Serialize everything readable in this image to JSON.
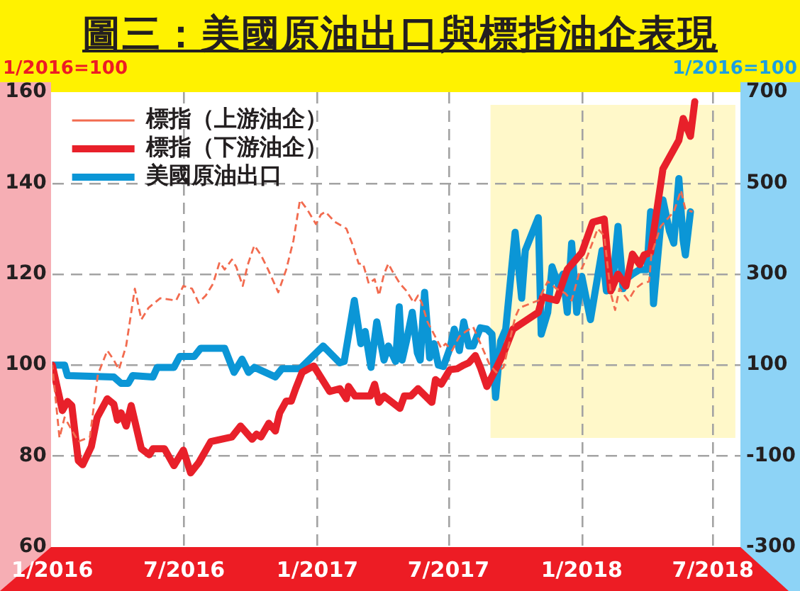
{
  "chart_data": {
    "type": "line",
    "title": "圖三：美國原油出口與標指油企表現",
    "ylabel": "1/2016=100",
    "y2label": "1/2016=100",
    "xlim": [
      "2016-01-01",
      "2018-08-08"
    ],
    "xticks": [
      {
        "value": "2016-01",
        "label": "1/2016"
      },
      {
        "value": "2016-07",
        "label": "7/2016"
      },
      {
        "value": "2017-01",
        "label": "1/2017"
      },
      {
        "value": "2017-07",
        "label": "7/2017"
      },
      {
        "value": "2018-01",
        "label": "1/2018"
      },
      {
        "value": "2018-07",
        "label": "7/2018"
      }
    ],
    "ylim": [
      60,
      160
    ],
    "yticks": [
      60,
      80,
      100,
      120,
      140,
      160
    ],
    "y2lim": [
      -300,
      700
    ],
    "y2ticks": [
      -300,
      -100,
      100,
      300,
      500,
      700
    ],
    "grid": true,
    "legend": "top left",
    "marker": "none",
    "bands": [
      {
        "axis": "x",
        "from": "2017-08-28",
        "to": "2018-08-01",
        "color": "#fff8c9"
      }
    ],
    "series": [
      {
        "name": "標指（上游油企）",
        "color": "#f26b4f",
        "line_style": "dashed",
        "x": [
          "2016-01-01",
          "2016-01-11",
          "2016-01-18",
          "2016-02-06",
          "2016-02-22",
          "2016-03-04",
          "2016-03-17",
          "2016-03-26",
          "2016-04-02",
          "2016-04-12",
          "2016-04-24",
          "2016-05-03",
          "2016-05-13",
          "2016-05-29",
          "2016-06-20",
          "2016-06-30",
          "2016-07-12",
          "2016-07-21",
          "2016-07-31",
          "2016-08-10",
          "2016-08-19",
          "2016-08-26",
          "2016-09-05",
          "2016-09-11",
          "2016-09-20",
          "2016-09-27",
          "2016-10-06",
          "2016-10-15",
          "2016-10-25",
          "2016-11-08",
          "2016-11-19",
          "2016-11-29",
          "2016-12-08",
          "2016-12-18",
          "2016-12-30",
          "2017-01-06",
          "2017-01-12",
          "2017-01-25",
          "2017-02-10",
          "2017-02-19",
          "2017-02-27",
          "2017-03-05",
          "2017-03-13",
          "2017-03-21",
          "2017-03-27",
          "2017-04-03",
          "2017-04-09",
          "2017-04-15",
          "2017-04-25",
          "2017-05-04",
          "2017-05-14",
          "2017-05-20",
          "2017-05-25",
          "2017-06-02",
          "2017-06-11",
          "2017-06-21",
          "2017-06-27",
          "2017-07-06",
          "2017-07-16",
          "2017-07-25",
          "2017-08-04",
          "2017-08-17",
          "2017-08-27",
          "2017-09-05",
          "2017-09-15",
          "2017-10-01",
          "2017-10-07",
          "2017-11-02",
          "2017-11-15",
          "2017-11-27",
          "2017-12-09",
          "2017-12-18",
          "2017-12-28",
          "2018-01-07",
          "2018-01-23",
          "2018-02-01",
          "2018-02-10",
          "2018-02-16",
          "2018-02-22",
          "2018-03-06",
          "2018-03-16",
          "2018-03-25",
          "2018-04-04",
          "2018-04-07",
          "2018-04-20",
          "2018-04-29",
          "2018-05-08",
          "2018-05-18",
          "2018-05-24",
          "2018-06-03"
        ],
        "values": [
          100,
          84,
          88.5,
          83.2,
          84.2,
          97.9,
          103.2,
          101.1,
          99,
          104.2,
          116.8,
          110,
          112.6,
          114.7,
          114.2,
          117.4,
          116.8,
          113.7,
          115.3,
          117.9,
          122.6,
          121,
          123.2,
          121.6,
          117.4,
          122.1,
          126.3,
          124.2,
          121,
          116,
          121,
          127.4,
          136.3,
          134.2,
          131,
          133.1,
          133.7,
          131.5,
          130,
          126.3,
          122.3,
          122.3,
          117.9,
          118.9,
          115.3,
          120,
          122.3,
          120.5,
          117.9,
          116.3,
          113.7,
          115.3,
          113.7,
          109.5,
          106.8,
          103.7,
          104.7,
          103.2,
          106.3,
          107.4,
          108.4,
          103.7,
          100,
          98.4,
          99.5,
          110.5,
          112.6,
          114.2,
          118.4,
          116.8,
          115.8,
          114.2,
          120,
          123.2,
          130,
          128.4,
          115.8,
          112.1,
          116.8,
          114.2,
          116.8,
          117.9,
          118.4,
          124.2,
          130.5,
          132.1,
          133.7,
          138.4,
          134.2,
          133.7
        ]
      },
      {
        "name": "標指（下游油企）",
        "color": "#e8202a",
        "x": [
          "2016-01-01",
          "2016-01-15",
          "2016-01-22",
          "2016-01-28",
          "2016-02-06",
          "2016-02-12",
          "2016-02-24",
          "2016-03-03",
          "2016-03-17",
          "2016-03-26",
          "2016-03-31",
          "2016-04-05",
          "2016-04-12",
          "2016-04-19",
          "2016-05-03",
          "2016-05-14",
          "2016-05-19",
          "2016-06-04",
          "2016-06-17",
          "2016-06-30",
          "2016-07-10",
          "2016-07-21",
          "2016-08-07",
          "2016-09-05",
          "2016-09-17",
          "2016-10-03",
          "2016-10-09",
          "2016-10-15",
          "2016-10-26",
          "2016-11-04",
          "2016-11-10",
          "2016-11-19",
          "2016-11-26",
          "2016-12-02",
          "2016-12-11",
          "2016-12-27",
          "2017-01-18",
          "2017-02-01",
          "2017-02-10",
          "2017-02-13",
          "2017-02-22",
          "2017-03-15",
          "2017-03-21",
          "2017-03-27",
          "2017-04-03",
          "2017-04-25",
          "2017-05-01",
          "2017-05-10",
          "2017-05-20",
          "2017-06-08",
          "2017-06-13",
          "2017-06-21",
          "2017-07-03",
          "2017-07-13",
          "2017-07-22",
          "2017-07-29",
          "2017-08-07",
          "2017-08-14",
          "2017-08-23",
          "2017-09-02",
          "2017-09-15",
          "2017-09-28",
          "2017-11-02",
          "2017-11-08",
          "2017-11-27",
          "2017-12-12",
          "2018-01-01",
          "2018-01-16",
          "2018-02-01",
          "2018-02-10",
          "2018-02-20",
          "2018-03-03",
          "2018-03-12",
          "2018-03-22",
          "2018-03-28",
          "2018-04-06",
          "2018-04-23",
          "2018-05-15",
          "2018-05-21",
          "2018-05-31",
          "2018-06-06"
        ],
        "values": [
          100,
          90,
          92,
          91.1,
          79,
          78.1,
          82.1,
          88.5,
          92.6,
          91.4,
          87.9,
          89.5,
          86.6,
          91.1,
          81.6,
          80.3,
          81.6,
          81.6,
          77.9,
          81.3,
          76.3,
          78.5,
          83.2,
          84.2,
          86.6,
          83.7,
          84.8,
          84.2,
          87.2,
          85.5,
          89.5,
          92.1,
          92.1,
          94.8,
          98.4,
          99.8,
          94.2,
          94.8,
          92.6,
          95.3,
          93.2,
          93.2,
          95.8,
          91.8,
          93.2,
          90.5,
          93.2,
          93.2,
          94.8,
          91.8,
          96.8,
          95.8,
          99,
          99.2,
          100,
          100.5,
          102.1,
          99.5,
          95.3,
          98.4,
          102.6,
          107.9,
          111.6,
          115,
          114.2,
          121,
          124.7,
          131.4,
          132.1,
          116.3,
          120,
          117.4,
          124.4,
          122.1,
          124.2,
          124.7,
          143.1,
          149.4,
          154.2,
          150.3,
          157.9
        ]
      },
      {
        "name": "美國原油出口",
        "color": "#0b96d6",
        "axis": "y2",
        "x": [
          "2016-01-01",
          "2016-01-18",
          "2016-01-22",
          "2016-03-26",
          "2016-04-05",
          "2016-04-15",
          "2016-04-21",
          "2016-05-19",
          "2016-05-25",
          "2016-06-17",
          "2016-06-25",
          "2016-07-15",
          "2016-07-24",
          "2016-08-26",
          "2016-09-08",
          "2016-09-19",
          "2016-09-28",
          "2016-10-06",
          "2016-11-04",
          "2016-11-13",
          "2016-12-08",
          "2017-01-09",
          "2017-02-01",
          "2017-02-07",
          "2017-02-21",
          "2017-03-02",
          "2017-03-08",
          "2017-03-16",
          "2017-03-24",
          "2017-04-03",
          "2017-04-09",
          "2017-04-19",
          "2017-04-24",
          "2017-04-28",
          "2017-05-04",
          "2017-05-12",
          "2017-05-19",
          "2017-05-23",
          "2017-05-29",
          "2017-06-05",
          "2017-06-11",
          "2017-06-17",
          "2017-06-24",
          "2017-07-03",
          "2017-07-09",
          "2017-07-16",
          "2017-07-22",
          "2017-07-29",
          "2017-08-04",
          "2017-08-14",
          "2017-08-23",
          "2017-08-30",
          "2017-09-04",
          "2017-09-11",
          "2017-09-18",
          "2017-10-01",
          "2017-10-10",
          "2017-10-15",
          "2017-11-02",
          "2017-11-06",
          "2017-11-15",
          "2017-11-21",
          "2017-11-30",
          "2017-12-06",
          "2017-12-12",
          "2017-12-18",
          "2017-12-25",
          "2018-01-01",
          "2018-01-13",
          "2018-01-29",
          "2018-02-04",
          "2018-02-12",
          "2018-02-20",
          "2018-02-27",
          "2018-03-03",
          "2018-03-12",
          "2018-03-22",
          "2018-04-01",
          "2018-04-06",
          "2018-04-10",
          "2018-04-23",
          "2018-05-02",
          "2018-05-08",
          "2018-05-15",
          "2018-05-21",
          "2018-05-24",
          "2018-05-31"
        ],
        "values": [
          100,
          100,
          77,
          74,
          60,
          60,
          77,
          74,
          95,
          95,
          119,
          119,
          137,
          137,
          84,
          113,
          84,
          95,
          74,
          92,
          92,
          142,
          105,
          108,
          242,
          147,
          174,
          95,
          195,
          111,
          142,
          108,
          228,
          111,
          153,
          216,
          127,
          111,
          260,
          116,
          147,
          100,
          97,
          137,
          179,
          132,
          195,
          142,
          142,
          182,
          179,
          168,
          29,
          153,
          179,
          392,
          247,
          352,
          424,
          168,
          216,
          316,
          274,
          300,
          216,
          368,
          216,
          295,
          200,
          352,
          263,
          268,
          405,
          268,
          289,
          300,
          310,
          310,
          437,
          235,
          463,
          395,
          368,
          510,
          374,
          342,
          437
        ]
      }
    ]
  }
}
